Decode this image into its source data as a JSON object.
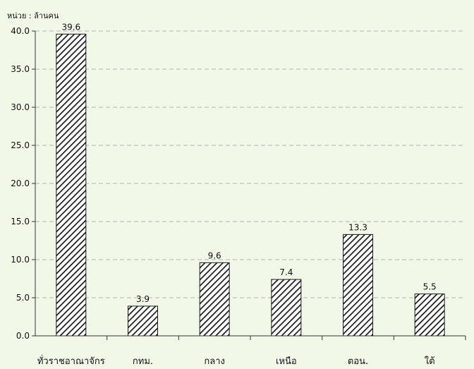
{
  "chart_data": {
    "type": "bar",
    "unit_label": "หน่วย : ล้านคน",
    "categories": [
      "ทั่วราชอาณาจักร",
      "กทม.",
      "กลาง",
      "เหนือ",
      "ตอน.",
      "ใต้"
    ],
    "values": [
      39.6,
      3.9,
      9.6,
      7.4,
      13.3,
      5.5
    ],
    "data_labels": [
      "39.6",
      "3.9",
      "9.6",
      "7.4",
      "13.3",
      "5.5"
    ],
    "y_ticks": [
      "0.0",
      "5.0",
      "10.0",
      "15.0",
      "20.0",
      "25.0",
      "30.0",
      "35.0",
      "40.0"
    ],
    "ylim": [
      0,
      40
    ],
    "grid": true,
    "legend": "none",
    "colors": {
      "background": "#f2f8e8",
      "bar_fill": "#ffffff",
      "bar_hatch": "#1a1a1a",
      "grid": "#9a9a9a",
      "axis": "#333333"
    }
  }
}
